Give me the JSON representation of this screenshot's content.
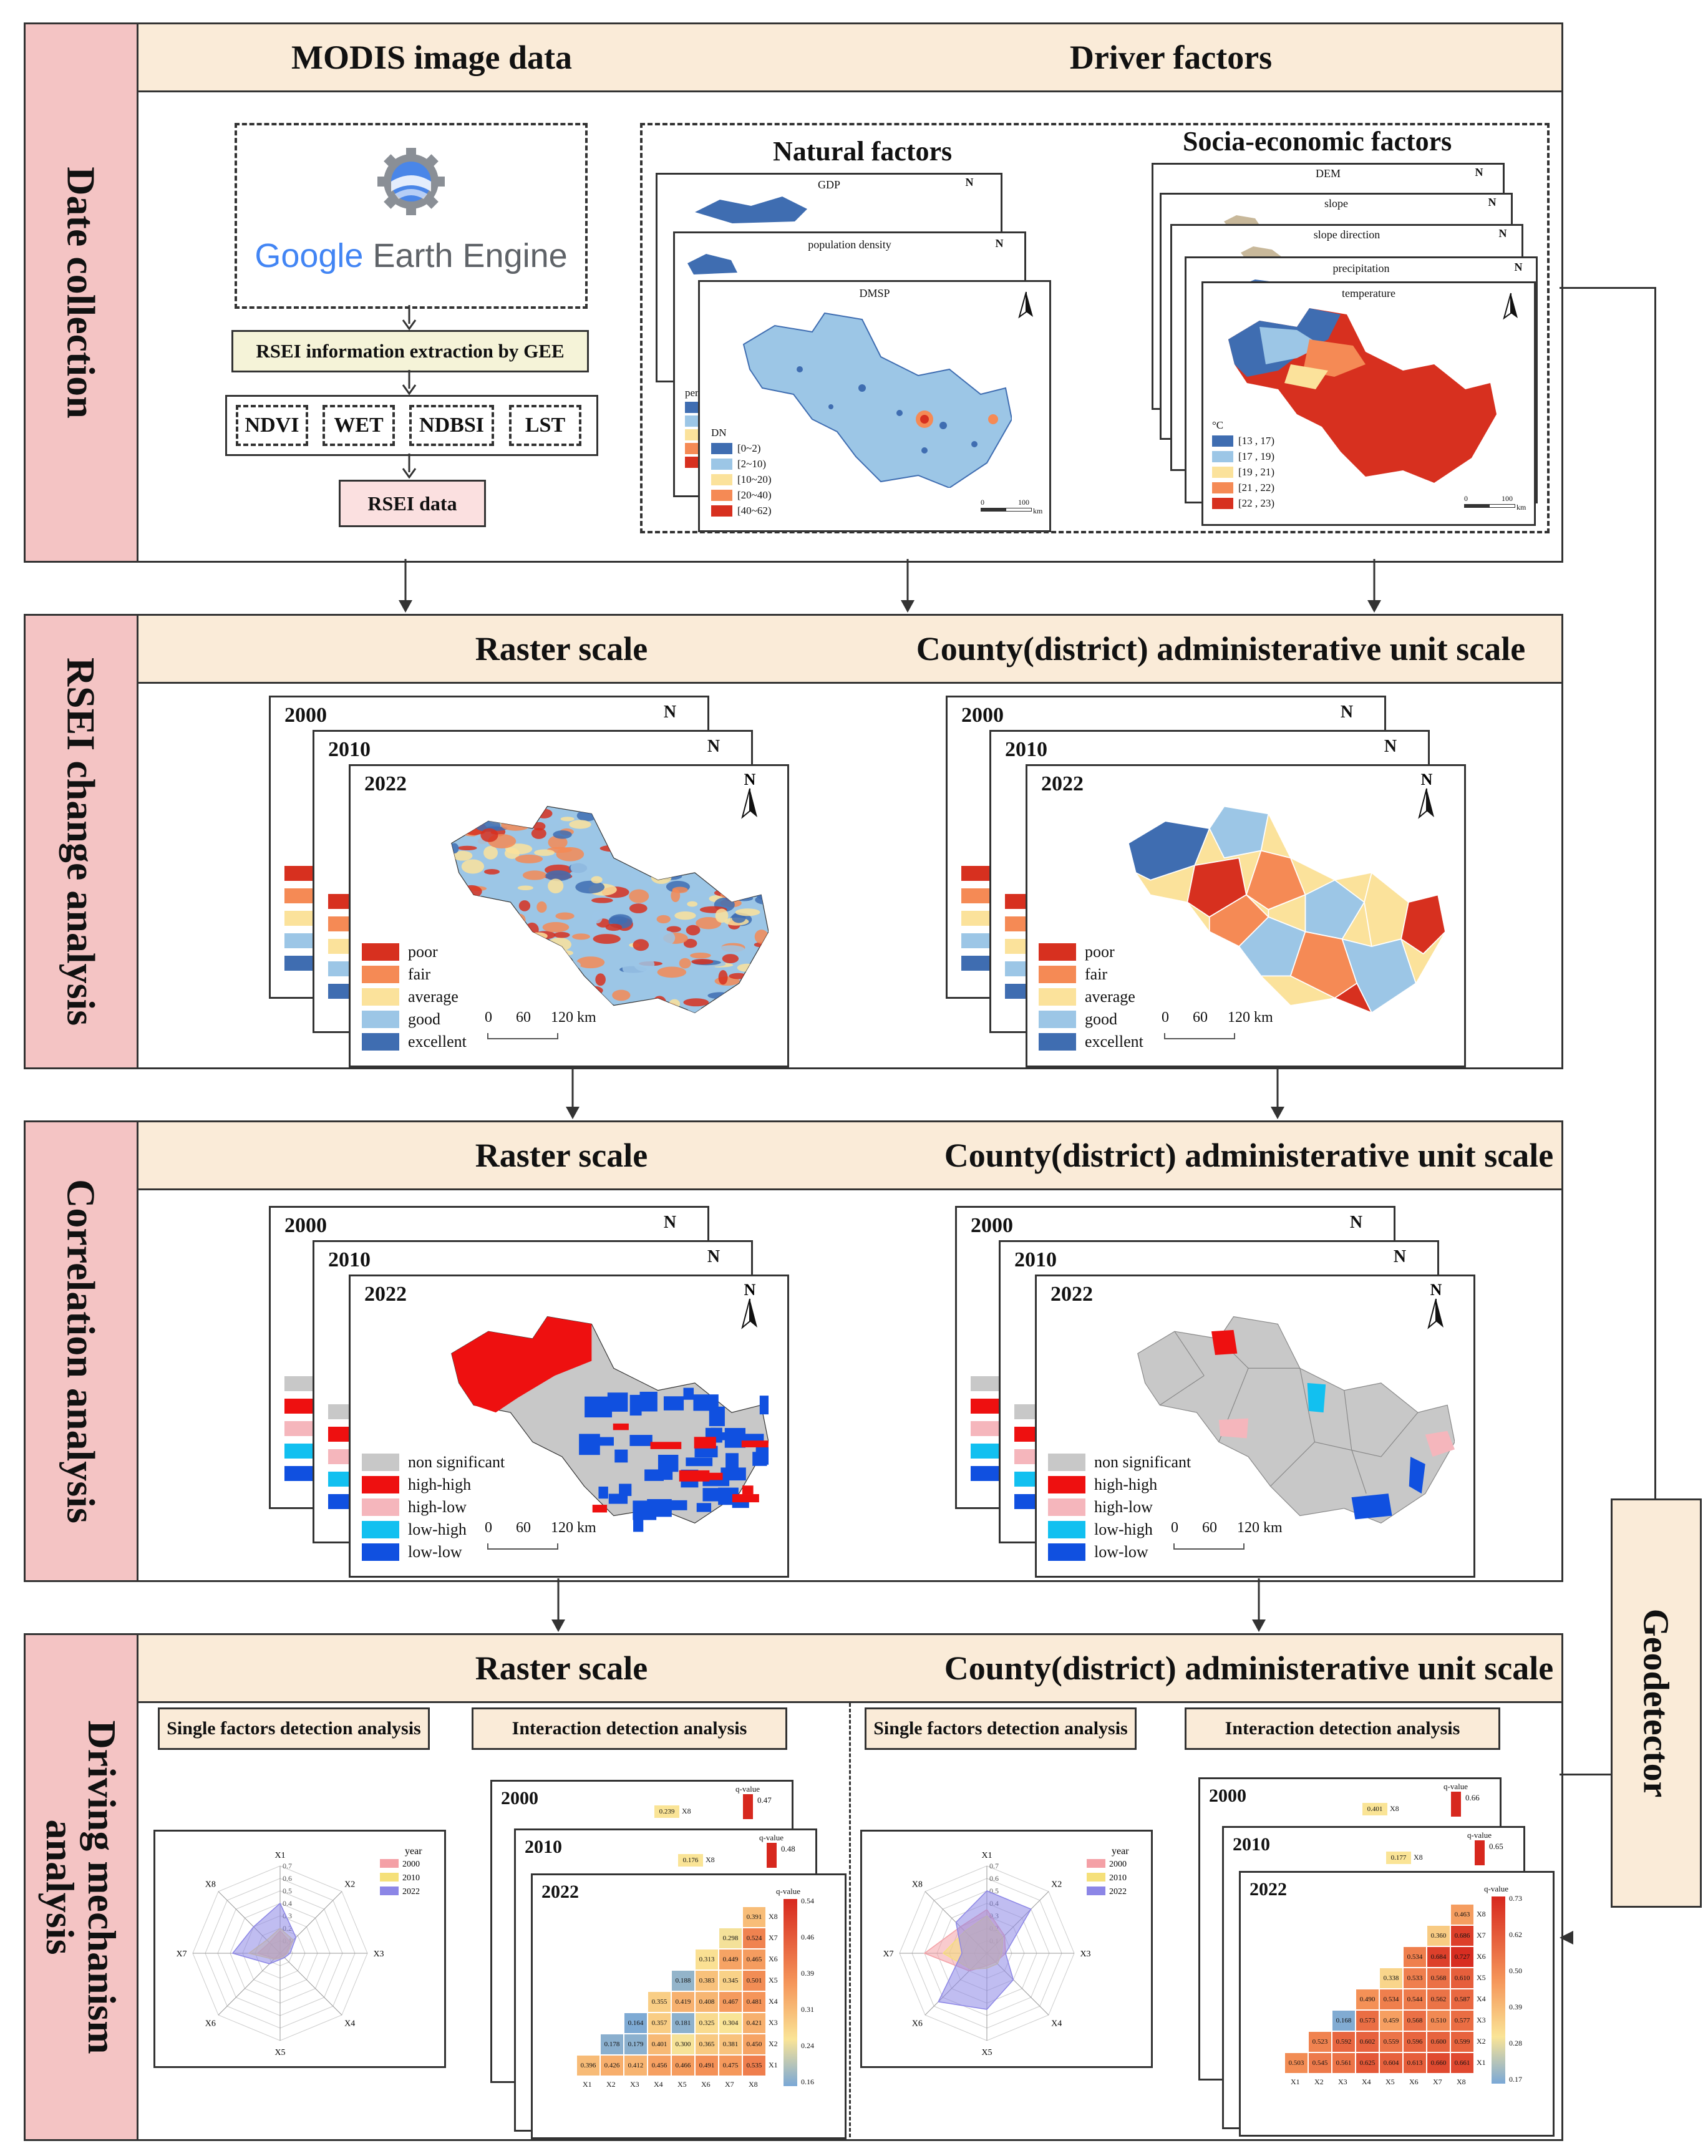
{
  "sections": {
    "s1": {
      "label": "Date collection",
      "headers": [
        "MODIS image data",
        "Driver factors"
      ]
    },
    "s2": {
      "label": "RSEI change analysis",
      "headers": [
        "Raster scale",
        "County(district) administerative unit scale"
      ]
    },
    "s3": {
      "label": "Correlation analysis",
      "headers": [
        "Raster scale",
        "County(district) administerative unit scale"
      ]
    },
    "s4": {
      "label_line1": "Driving mechanism",
      "label_line2": "analysis",
      "headers": [
        "Raster scale",
        "County(district) administerative unit scale"
      ]
    }
  },
  "modis": {
    "gee_google": "Google",
    "gee_rest": " Earth Engine",
    "extract_label": "RSEI information extraction by GEE",
    "indices": [
      "NDVI",
      "WET",
      "NDBSI",
      "LST"
    ],
    "output": "RSEI data"
  },
  "driver": {
    "natural_title": "Natural factors",
    "socio_title": "Socia-economic factors",
    "natural_maps": [
      "GDP",
      "population density",
      "DMSP"
    ],
    "socio_maps": [
      "DEM",
      "slope",
      "slope direction",
      "precipitation",
      "temperature"
    ],
    "dmsp_legend_title": "DN",
    "dmsp_legend": [
      "[0~2)",
      "[2~10)",
      "[10~20)",
      "[20~40)",
      "[40~62)"
    ],
    "temp_legend_title": "°C",
    "temp_legend": [
      "[13 , 17)",
      "[17 , 19)",
      "[19 , 21)",
      "[21 , 22)",
      "[22 , 23)"
    ],
    "peek_label": "pers",
    "scale_zero": "0",
    "scale_hundred": "100",
    "scale_km": "km"
  },
  "geodetector": "Geodetector",
  "years": [
    "2000",
    "2010",
    "2022"
  ],
  "north": "N",
  "rsei_legend": [
    "poor",
    "fair",
    "average",
    "good",
    "excellent"
  ],
  "lisa_legend": [
    "non significant",
    "high-high",
    "high-low",
    "low-high",
    "low-low"
  ],
  "scalebar": [
    "0",
    "60",
    "120 km"
  ],
  "analysis": {
    "single": "Single factors detection analysis",
    "interaction": "Interaction detection analysis",
    "radar_axes": [
      "X1",
      "X2",
      "X3",
      "X4",
      "X5",
      "X6",
      "X7",
      "X8"
    ],
    "radar_ticks": [
      "0.7",
      "0.6",
      "0.5",
      "0.4",
      "0.3",
      "0.2",
      "0.1"
    ],
    "radar_legend_title": "year",
    "radar_legend": [
      "2000",
      "2010",
      "2022"
    ],
    "qvalue": "q-value",
    "raster_scale_ticks": [
      "0.54",
      "0.46",
      "0.39",
      "0.31",
      "0.24",
      "0.16"
    ],
    "county_scale_ticks": [
      "0.73",
      "0.62",
      "0.50",
      "0.39",
      "0.28",
      "0.17"
    ],
    "raster_back_max": [
      "0.47",
      "0.48"
    ],
    "county_back_max": [
      "0.66",
      "0.65"
    ],
    "raster_back_cells": [
      "0.239",
      "0.176"
    ],
    "county_back_cells": [
      "0.401",
      "0.177"
    ]
  },
  "chart_data": [
    {
      "type": "radar",
      "title": "Single factors detection analysis (Raster scale)",
      "axes": [
        "X1",
        "X2",
        "X3",
        "X4",
        "X5",
        "X6",
        "X7",
        "X8"
      ],
      "range": [
        0,
        0.7
      ],
      "series": [
        {
          "name": "2000",
          "values": [
            0.18,
            0.12,
            0.05,
            0.03,
            0.03,
            0.06,
            0.18,
            0.12
          ]
        },
        {
          "name": "2010",
          "values": [
            0.2,
            0.15,
            0.06,
            0.04,
            0.04,
            0.07,
            0.25,
            0.15
          ]
        },
        {
          "name": "2022",
          "values": [
            0.4,
            0.18,
            0.08,
            0.05,
            0.05,
            0.12,
            0.38,
            0.3
          ]
        }
      ]
    },
    {
      "type": "radar",
      "title": "Single factors detection analysis (County scale)",
      "axes": [
        "X1",
        "X2",
        "X3",
        "X4",
        "X5",
        "X6",
        "X7",
        "X8"
      ],
      "range": [
        0,
        0.7
      ],
      "series": [
        {
          "name": "2000",
          "values": [
            0.35,
            0.2,
            0.15,
            0.1,
            0.1,
            0.2,
            0.5,
            0.3
          ]
        },
        {
          "name": "2010",
          "values": [
            0.3,
            0.18,
            0.12,
            0.12,
            0.12,
            0.18,
            0.35,
            0.25
          ]
        },
        {
          "name": "2022",
          "values": [
            0.5,
            0.5,
            0.15,
            0.3,
            0.45,
            0.55,
            0.2,
            0.35
          ]
        }
      ]
    },
    {
      "type": "heatmap",
      "title": "Interaction detection analysis 2022 (Raster scale)",
      "x": [
        "X1",
        "X2",
        "X3",
        "X4",
        "X5",
        "X6",
        "X7",
        "X8"
      ],
      "rows": [
        {
          "y": "X8",
          "values": [
            "0.391"
          ]
        },
        {
          "y": "X7",
          "values": [
            "0.298",
            "0.524"
          ]
        },
        {
          "y": "X6",
          "values": [
            "0.313",
            "0.449",
            "0.465"
          ]
        },
        {
          "y": "X5",
          "values": [
            "0.188",
            "0.383",
            "0.345",
            "0.501"
          ]
        },
        {
          "y": "X4",
          "values": [
            "0.355",
            "0.419",
            "0.408",
            "0.467",
            "0.481"
          ]
        },
        {
          "y": "X3",
          "values": [
            "0.164",
            "0.357",
            "0.181",
            "0.325",
            "0.304",
            "0.421"
          ]
        },
        {
          "y": "X2",
          "values": [
            "0.178",
            "0.179",
            "0.401",
            "0.300",
            "0.365",
            "0.381",
            "0.450"
          ]
        },
        {
          "y": "X1",
          "values": [
            "0.396",
            "0.426",
            "0.412",
            "0.456",
            "0.466",
            "0.491",
            "0.475",
            "0.535"
          ]
        }
      ]
    },
    {
      "type": "heatmap",
      "title": "Interaction detection analysis 2022 (County scale)",
      "x": [
        "X1",
        "X2",
        "X3",
        "X4",
        "X5",
        "X6",
        "X7",
        "X8"
      ],
      "rows": [
        {
          "y": "X8",
          "values": [
            "0.463"
          ]
        },
        {
          "y": "X7",
          "values": [
            "0.360",
            "0.686"
          ]
        },
        {
          "y": "X6",
          "values": [
            "0.534",
            "0.684",
            "0.727"
          ]
        },
        {
          "y": "X5",
          "values": [
            "0.338",
            "0.533",
            "0.568",
            "0.610"
          ]
        },
        {
          "y": "X4",
          "values": [
            "0.490",
            "0.534",
            "0.544",
            "0.562",
            "0.587"
          ]
        },
        {
          "y": "X3",
          "values": [
            "0.168",
            "0.573",
            "0.459",
            "0.568",
            "0.510",
            "0.577"
          ]
        },
        {
          "y": "X2",
          "values": [
            "0.523",
            "0.592",
            "0.602",
            "0.559",
            "0.596",
            "0.600",
            "0.599"
          ]
        },
        {
          "y": "X1",
          "values": [
            "0.503",
            "0.545",
            "0.561",
            "0.625",
            "0.604",
            "0.613",
            "0.660",
            "0.661"
          ]
        }
      ]
    }
  ],
  "colors": {
    "side": "#f4c4c4",
    "band": "#faebd8",
    "rsei": [
      "#d7301f",
      "#f58a55",
      "#fbe29b",
      "#9cc6e6",
      "#3f6db1"
    ],
    "lisa": [
      "#c8c8c8",
      "#ee1010",
      "#f5b6bc",
      "#12c0f0",
      "#1050e0"
    ]
  }
}
